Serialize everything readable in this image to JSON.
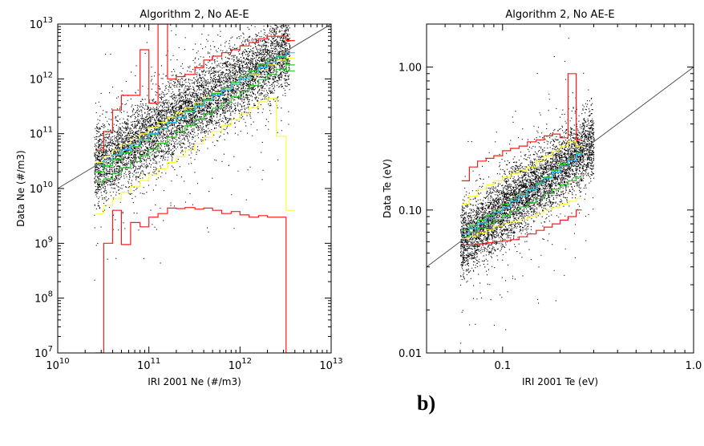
{
  "panel_label": "b)",
  "colors": {
    "points": "#000000",
    "red": "#ff1a1a",
    "yellow": "#ffff33",
    "green": "#22cc22",
    "cyan": "#22bbff",
    "line": "#555555"
  },
  "chart_data": [
    {
      "type": "scatter",
      "title": "Algorithm 2, No AE-E",
      "xlabel": "IRI 2001 Ne (#/m3)",
      "ylabel": "Data Ne (#/m3)",
      "xscale": "log",
      "yscale": "log",
      "xlim": [
        10000000000.0,
        10000000000000.0
      ],
      "ylim": [
        10000000.0,
        10000000000000.0
      ],
      "xticks": [
        {
          "value": 10000000000.0,
          "base": "10",
          "exp": "10"
        },
        {
          "value": 100000000000.0,
          "base": "10",
          "exp": "11"
        },
        {
          "value": 1000000000000.0,
          "base": "10",
          "exp": "12"
        },
        {
          "value": 10000000000000.0,
          "base": "10",
          "exp": "13"
        }
      ],
      "yticks": [
        {
          "value": 10000000.0,
          "base": "10",
          "exp": "7"
        },
        {
          "value": 100000000.0,
          "base": "10",
          "exp": "8"
        },
        {
          "value": 1000000000.0,
          "base": "10",
          "exp": "9"
        },
        {
          "value": 10000000000.0,
          "base": "10",
          "exp": "10"
        },
        {
          "value": 100000000000.0,
          "base": "10",
          "exp": "11"
        },
        {
          "value": 1000000000000.0,
          "base": "10",
          "exp": "12"
        },
        {
          "value": 10000000000000.0,
          "base": "10",
          "exp": "13"
        }
      ],
      "reference_line": [
        [
          10000000000.0,
          10000000000.0
        ],
        [
          10000000000000.0,
          10000000000000.0
        ]
      ],
      "scatter_band": {
        "x_range": [
          25000000000.0,
          3500000000000.0
        ],
        "spread_decades": 0.35
      },
      "step_edges": [
        26000000000.0,
        32000000000.0,
        40000000000.0,
        50000000000.0,
        63000000000.0,
        80000000000.0,
        100000000000.0,
        126000000000.0,
        160000000000.0,
        200000000000.0,
        250000000000.0,
        320000000000.0,
        400000000000.0,
        500000000000.0,
        630000000000.0,
        800000000000.0,
        1000000000000.0,
        1260000000000.0,
        1600000000000.0,
        2000000000000.0,
        2500000000000.0,
        3200000000000.0,
        4000000000000.0
      ],
      "series": [
        {
          "color": "red",
          "values": [
            50000000000.0,
            110000000000.0,
            270000000000.0,
            500000000000.0,
            500000000000.0,
            3400000000000.0,
            360000000000.0,
            10000000000000.0,
            1000000000000.0,
            1100000000000.0,
            1200000000000.0,
            1600000000000.0,
            2200000000000.0,
            2600000000000.0,
            3000000000000.0,
            3400000000000.0,
            4000000000000.0,
            4600000000000.0,
            5400000000000.0,
            6000000000000.0,
            6000000000000.0,
            5000000000000.0
          ]
        },
        {
          "color": "red",
          "values": [
            10000000.0,
            1000000000.0,
            4000000000.0,
            950000000.0,
            2400000000.0,
            2000000000.0,
            3000000000.0,
            3500000000.0,
            4400000000.0,
            4300000000.0,
            4500000000.0,
            4200000000.0,
            4400000000.0,
            4000000000.0,
            3500000000.0,
            3800000000.0,
            3300000000.0,
            3000000000.0,
            3200000000.0,
            3000000000.0,
            3000000000.0,
            10000000.0
          ]
        },
        {
          "color": "yellow",
          "values": [
            30000000000.0,
            38000000000.0,
            50000000000.0,
            65000000000.0,
            80000000000.0,
            100000000000.0,
            130000000000.0,
            160000000000.0,
            200000000000.0,
            240000000000.0,
            300000000000.0,
            370000000000.0,
            460000000000.0,
            560000000000.0,
            680000000000.0,
            820000000000.0,
            1000000000000.0,
            1200000000000.0,
            1450000000000.0,
            1800000000000.0,
            2200000000000.0,
            2400000000000.0
          ]
        },
        {
          "color": "yellow",
          "values": [
            3500000000.0,
            5000000000.0,
            6500000000.0,
            8500000000.0,
            11000000000.0,
            14000000000.0,
            18000000000.0,
            23000000000.0,
            30000000000.0,
            38000000000.0,
            50000000000.0,
            65000000000.0,
            85000000000.0,
            110000000000.0,
            140000000000.0,
            180000000000.0,
            230000000000.0,
            300000000000.0,
            380000000000.0,
            440000000000.0,
            90000000000.0,
            4000000000.0
          ]
        },
        {
          "color": "green",
          "values": [
            20000000000.0,
            26000000000.0,
            34000000000.0,
            45000000000.0,
            58000000000.0,
            75000000000.0,
            96000000000.0,
            125000000000.0,
            160000000000.0,
            200000000000.0,
            260000000000.0,
            330000000000.0,
            420000000000.0,
            540000000000.0,
            680000000000.0,
            860000000000.0,
            1100000000000.0,
            1400000000000.0,
            1800000000000.0,
            2300000000000.0,
            2600000000000.0,
            1400000000000.0
          ]
        },
        {
          "color": "green",
          "values": [
            13000000000.0,
            15000000000.0,
            19000000000.0,
            24000000000.0,
            31000000000.0,
            40000000000.0,
            52000000000.0,
            67000000000.0,
            86000000000.0,
            110000000000.0,
            140000000000.0,
            180000000000.0,
            230000000000.0,
            290000000000.0,
            370000000000.0,
            470000000000.0,
            600000000000.0,
            760000000000.0,
            970000000000.0,
            1200000000000.0,
            1500000000000.0,
            1800000000000.0
          ]
        },
        {
          "color": "cyan",
          "values": [
            27000000000.0,
            33000000000.0,
            41000000000.0,
            51000000000.0,
            64000000000.0,
            80000000000.0,
            100000000000.0,
            126000000000.0,
            160000000000.0,
            200000000000.0,
            250000000000.0,
            320000000000.0,
            400000000000.0,
            500000000000.0,
            630000000000.0,
            800000000000.0,
            1000000000000.0,
            1260000000000.0,
            1600000000000.0,
            2000000000000.0,
            2500000000000.0,
            3000000000000.0
          ]
        }
      ]
    },
    {
      "type": "scatter",
      "title": "Algorithm 2, No AE-E",
      "xlabel": "IRI 2001 Te (eV)",
      "ylabel": "Data Te (eV)",
      "xscale": "log",
      "yscale": "log",
      "xlim": [
        0.04,
        1.0
      ],
      "ylim": [
        0.01,
        2.0
      ],
      "xticks": [
        {
          "value": 0.1,
          "label": "0.1"
        },
        {
          "value": 1.0,
          "label": "1.0"
        }
      ],
      "yticks": [
        {
          "value": 0.01,
          "label": "0.01"
        },
        {
          "value": 0.1,
          "label": "0.10"
        },
        {
          "value": 1.0,
          "label": "1.00"
        }
      ],
      "reference_line": [
        [
          0.04,
          0.04
        ],
        [
          1.0,
          1.0
        ]
      ],
      "scatter_band": {
        "x_range": [
          0.06,
          0.3
        ],
        "spread_decades": 0.12
      },
      "step_edges": [
        0.061,
        0.067,
        0.074,
        0.082,
        0.09,
        0.1,
        0.11,
        0.122,
        0.135,
        0.15,
        0.165,
        0.182,
        0.2,
        0.22,
        0.243,
        0.26
      ],
      "series": [
        {
          "color": "red",
          "values": [
            0.16,
            0.2,
            0.22,
            0.23,
            0.24,
            0.26,
            0.27,
            0.28,
            0.3,
            0.31,
            0.33,
            0.34,
            0.32,
            0.9,
            0.31
          ]
        },
        {
          "color": "red",
          "values": [
            0.057,
            0.057,
            0.058,
            0.059,
            0.06,
            0.061,
            0.062,
            0.065,
            0.068,
            0.072,
            0.076,
            0.08,
            0.085,
            0.09,
            0.1
          ]
        },
        {
          "color": "yellow",
          "values": [
            0.11,
            0.125,
            0.14,
            0.15,
            0.16,
            0.17,
            0.18,
            0.19,
            0.2,
            0.22,
            0.24,
            0.26,
            0.28,
            0.3,
            0.28
          ]
        },
        {
          "color": "yellow",
          "values": [
            0.063,
            0.066,
            0.069,
            0.073,
            0.077,
            0.08,
            0.083,
            0.086,
            0.09,
            0.095,
            0.1,
            0.105,
            0.11,
            0.115,
            0.12
          ]
        },
        {
          "color": "green",
          "values": [
            0.072,
            0.078,
            0.085,
            0.092,
            0.1,
            0.11,
            0.12,
            0.13,
            0.14,
            0.155,
            0.17,
            0.19,
            0.21,
            0.23,
            0.25
          ]
        },
        {
          "color": "green",
          "values": [
            0.065,
            0.07,
            0.075,
            0.08,
            0.086,
            0.092,
            0.098,
            0.105,
            0.112,
            0.12,
            0.13,
            0.14,
            0.15,
            0.16,
            0.17
          ]
        },
        {
          "color": "cyan",
          "values": [
            0.068,
            0.074,
            0.081,
            0.088,
            0.096,
            0.105,
            0.115,
            0.126,
            0.138,
            0.152,
            0.167,
            0.184,
            0.202,
            0.222,
            0.245
          ]
        }
      ]
    }
  ]
}
